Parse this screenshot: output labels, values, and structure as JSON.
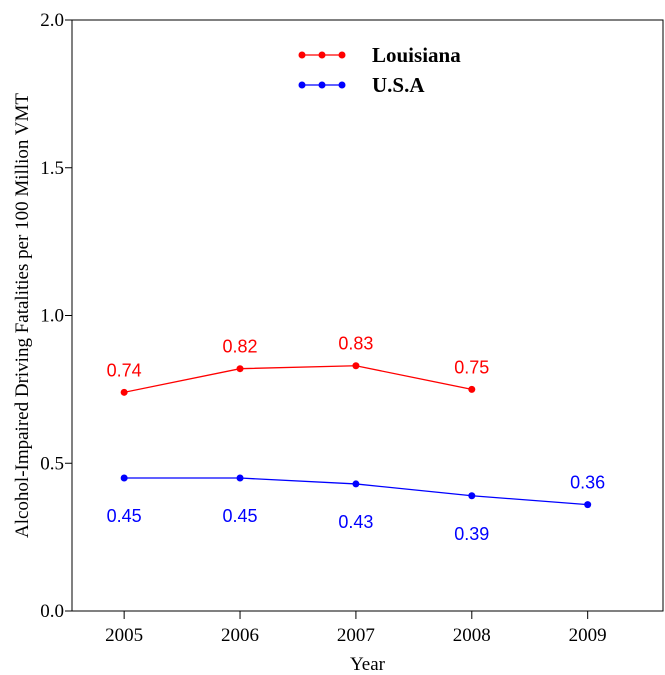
{
  "chart_data": {
    "type": "line",
    "title": "",
    "xlabel": "Year",
    "ylabel": "Alcohol-Impaired Driving Fatalities per 100 Million VMT",
    "x": [
      2005,
      2006,
      2007,
      2008,
      2009
    ],
    "xlim": [
      2004.55,
      2009.65
    ],
    "ylim": [
      0.0,
      2.0
    ],
    "yticks": [
      "0.0",
      "0.5",
      "1.0",
      "1.5",
      "2.0"
    ],
    "xticks": [
      "2005",
      "2006",
      "2007",
      "2008",
      "2009"
    ],
    "grid": false,
    "legend_position": "top-center",
    "series": [
      {
        "name": "Louisiana",
        "color": "#ff0000",
        "x": [
          2005,
          2006,
          2007,
          2008
        ],
        "values": [
          0.74,
          0.82,
          0.83,
          0.75
        ],
        "labels": [
          "0.74",
          "0.82",
          "0.83",
          "0.75"
        ],
        "label_side": "above"
      },
      {
        "name": "U.S.A",
        "color": "#0000ff",
        "x": [
          2005,
          2006,
          2007,
          2008,
          2009
        ],
        "values": [
          0.45,
          0.45,
          0.43,
          0.39,
          0.36
        ],
        "labels": [
          "0.45",
          "0.45",
          "0.43",
          "0.39",
          "0.36"
        ],
        "label_side": [
          "below",
          "below",
          "below",
          "below",
          "above"
        ]
      }
    ]
  }
}
